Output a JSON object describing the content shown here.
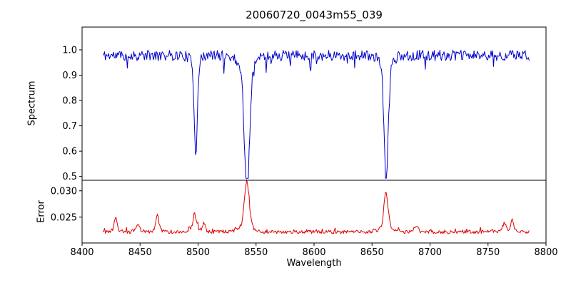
{
  "chart_data": {
    "type": "line",
    "title": "20060720_0043m55_039",
    "xlabel": "Wavelength",
    "x_range": [
      8400,
      8800
    ],
    "x_ticks": [
      8400,
      8450,
      8500,
      8550,
      8600,
      8650,
      8700,
      8750,
      8800
    ],
    "x_ticklabels": [
      "8400",
      "8450",
      "8500",
      "8550",
      "8600",
      "8650",
      "8700",
      "8750",
      "8800"
    ],
    "data_x_range": [
      8418,
      8786
    ],
    "sample_step": 0.7,
    "noise_seed": 11,
    "grid": false,
    "legend": "none",
    "panels": [
      {
        "name": "spectrum",
        "ylabel": "Spectrum",
        "color": "#0000cc",
        "ylim": [
          0.485,
          1.09
        ],
        "yticks": [
          0.5,
          0.6,
          0.7,
          0.8,
          0.9,
          1.0
        ],
        "yticklabels": [
          "0.5",
          "0.6",
          "0.7",
          "0.8",
          "0.9",
          "1.0"
        ],
        "continuum": 0.978,
        "noise_amp": 0.021,
        "absorption_lines": [
          {
            "center": 8498.0,
            "depth": 0.35,
            "width": 1.3
          },
          {
            "center": 8542.1,
            "depth": 0.49,
            "width": 2.2
          },
          {
            "center": 8662.1,
            "depth": 0.45,
            "width": 1.7
          }
        ]
      },
      {
        "name": "error",
        "ylabel": "Error",
        "color": "#dd0000",
        "ylim": [
          0.0201,
          0.032
        ],
        "yticks": [
          0.025,
          0.03
        ],
        "yticklabels": [
          "0.025",
          "0.030"
        ],
        "baseline": 0.0222,
        "noise_amp": 0.00035,
        "peaks": [
          {
            "center": 8429,
            "amp": 0.0026,
            "width": 1.2
          },
          {
            "center": 8448,
            "amp": 0.001,
            "width": 1.5
          },
          {
            "center": 8465,
            "amp": 0.0028,
            "width": 1.2
          },
          {
            "center": 8497,
            "amp": 0.003,
            "width": 1.5
          },
          {
            "center": 8505,
            "amp": 0.0014,
            "width": 1.2
          },
          {
            "center": 8542,
            "amp": 0.0086,
            "width": 2.0
          },
          {
            "center": 8662,
            "amp": 0.0066,
            "width": 1.8
          },
          {
            "center": 8688,
            "amp": 0.001,
            "width": 1.5
          },
          {
            "center": 8764,
            "amp": 0.0014,
            "width": 1.5
          },
          {
            "center": 8771,
            "amp": 0.002,
            "width": 1.2
          }
        ]
      }
    ]
  }
}
